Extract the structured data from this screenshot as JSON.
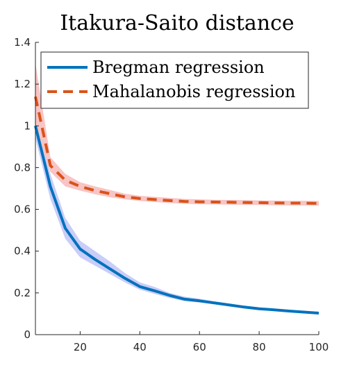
{
  "chart_data": {
    "type": "line",
    "title": "Itakura-Saito distance",
    "xlabel": "",
    "ylabel": "",
    "xlim": [
      5,
      100
    ],
    "ylim": [
      0,
      1.4
    ],
    "xticks": [
      "20",
      "40",
      "60",
      "80",
      "100"
    ],
    "yticks": [
      "0",
      "0.2",
      "0.4",
      "0.6",
      "0.8",
      "1",
      "1.2",
      "1.4"
    ],
    "grid": false,
    "legend_position": "top",
    "series": [
      {
        "name": "Bregman regression",
        "color": "#0072BD",
        "band_color": "#C9CDF7",
        "line_style": "solid",
        "x": [
          5,
          10,
          15,
          20,
          25,
          30,
          35,
          40,
          45,
          50,
          55,
          60,
          65,
          70,
          75,
          80,
          85,
          90,
          95,
          100
        ],
        "y": [
          1.0,
          0.71,
          0.51,
          0.41,
          0.36,
          0.315,
          0.27,
          0.23,
          0.21,
          0.188,
          0.17,
          0.162,
          0.152,
          0.142,
          0.132,
          0.124,
          0.119,
          0.113,
          0.108,
          0.103
        ],
        "lower": [
          0.94,
          0.65,
          0.46,
          0.37,
          0.33,
          0.29,
          0.25,
          0.215,
          0.195,
          0.176,
          0.16,
          0.154,
          0.145,
          0.135,
          0.126,
          0.118,
          0.114,
          0.108,
          0.104,
          0.099
        ],
        "upper": [
          1.06,
          0.77,
          0.56,
          0.45,
          0.4,
          0.35,
          0.295,
          0.25,
          0.228,
          0.2,
          0.182,
          0.172,
          0.16,
          0.15,
          0.139,
          0.131,
          0.125,
          0.118,
          0.113,
          0.107
        ]
      },
      {
        "name": "Mahalanobis regression",
        "color": "#D95319",
        "band_color": "#F8C4C4",
        "line_style": "dashed",
        "x": [
          5,
          10,
          15,
          20,
          25,
          30,
          35,
          40,
          45,
          50,
          55,
          60,
          65,
          70,
          75,
          80,
          85,
          90,
          95,
          100
        ],
        "y": [
          1.14,
          0.81,
          0.74,
          0.71,
          0.69,
          0.675,
          0.66,
          0.652,
          0.647,
          0.642,
          0.638,
          0.636,
          0.635,
          0.634,
          0.633,
          0.632,
          0.631,
          0.63,
          0.63,
          0.629
        ],
        "lower": [
          1.0,
          0.78,
          0.71,
          0.69,
          0.672,
          0.658,
          0.648,
          0.64,
          0.635,
          0.63,
          0.627,
          0.625,
          0.624,
          0.623,
          0.622,
          0.621,
          0.62,
          0.619,
          0.619,
          0.618
        ],
        "upper": [
          1.3,
          0.85,
          0.77,
          0.73,
          0.71,
          0.693,
          0.675,
          0.665,
          0.66,
          0.655,
          0.65,
          0.648,
          0.646,
          0.645,
          0.644,
          0.643,
          0.642,
          0.641,
          0.641,
          0.64
        ]
      }
    ]
  }
}
